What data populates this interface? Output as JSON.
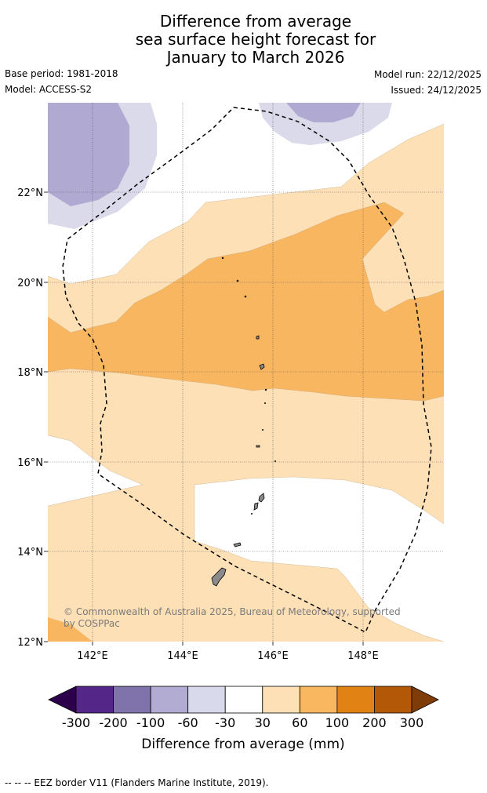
{
  "title": {
    "line1": "Difference from average",
    "line2": "sea surface height forecast for",
    "line3": "January to March 2026"
  },
  "meta": {
    "base_period": "Base period: 1981-2018",
    "model": "Model: ACCESS-S2",
    "model_run": "Model run: 22/12/2025",
    "issued": "Issued: 24/12/2025"
  },
  "map": {
    "lon_range": [
      141,
      149.8
    ],
    "lat_range": [
      12,
      24
    ],
    "lon_ticks": [
      "142°E",
      "144°E",
      "146°E",
      "148°E"
    ],
    "lat_ticks": [
      "12°N",
      "14°N",
      "16°N",
      "18°N",
      "20°N",
      "22°N"
    ],
    "copyright_line1": "© Commonwealth of Australia 2025, Bureau of Meteorology, supported",
    "copyright_line2": "by COSPPac",
    "colors": {
      "n100_60": "#b0aad2",
      "n60_30": "#dadaea",
      "zero": "#ffffff",
      "p30_60": "#fde0b6",
      "p60_100": "#f9b660",
      "land": "#8a8a8a"
    }
  },
  "colorbar": {
    "labels": [
      "-300",
      "-200",
      "-100",
      "-60",
      "-30",
      "30",
      "60",
      "100",
      "200",
      "300"
    ],
    "colors": [
      "#2d004b",
      "#542688",
      "#8073ac",
      "#b2abd2",
      "#d8daeb",
      "#ffffff",
      "#fee0b6",
      "#f9b760",
      "#e08214",
      "#b35806",
      "#7f3b08"
    ],
    "title": "Difference from average (mm)"
  },
  "footer": "--  --  -- EEZ border V11 (Flanders Marine Institute, 2019)."
}
